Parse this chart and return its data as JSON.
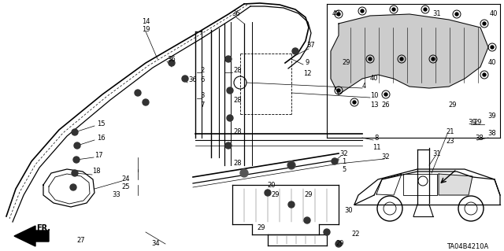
{
  "bg_color": "#ffffff",
  "diagram_code": "TA04B4210A",
  "figsize": [
    6.4,
    3.19
  ],
  "dpi": 100
}
